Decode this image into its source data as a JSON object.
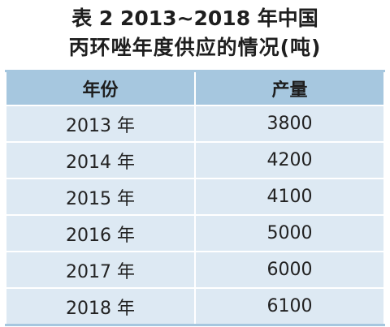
{
  "chart_data": {
    "type": "table",
    "title": "表 2  2013~2018 年中国",
    "subtitle": "丙环唑年度供应的情况(吨)",
    "columns": [
      "年份",
      "产量"
    ],
    "rows": [
      {
        "year": "2013 年",
        "value": "3800"
      },
      {
        "year": "2014 年",
        "value": "4200"
      },
      {
        "year": "2015 年",
        "value": "4100"
      },
      {
        "year": "2016 年",
        "value": "5000"
      },
      {
        "year": "2017 年",
        "value": "6000"
      },
      {
        "year": "2018 年",
        "value": "6100"
      }
    ]
  },
  "colors": {
    "header_bg": "#a6c7df",
    "row_bg": "#dde9f3"
  }
}
